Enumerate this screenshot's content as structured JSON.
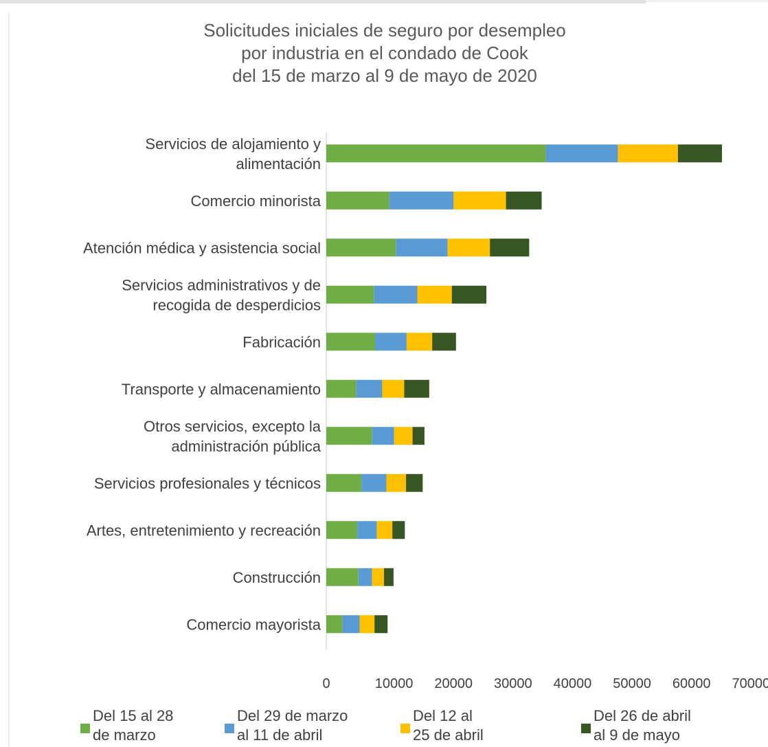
{
  "chart_data": {
    "type": "bar",
    "orientation": "horizontal",
    "stacked": true,
    "title_lines": [
      "Solicitudes iniciales de seguro por desempleo",
      "por industria en el condado de Cook",
      "del 15 de marzo al 9 de mayo de 2020"
    ],
    "categories": [
      [
        "Servicios de alojamiento y",
        "alimentación"
      ],
      [
        "Comercio minorista"
      ],
      [
        "Atención médica y asistencia social"
      ],
      [
        "Servicios administrativos y de",
        "recogida de desperdicios"
      ],
      [
        "Fabricación"
      ],
      [
        "Transporte y almacenamiento"
      ],
      [
        "Otros servicios, excepto la",
        "administración pública"
      ],
      [
        "Servicios profesionales y técnicos"
      ],
      [
        "Artes, entretenimiento y recreación"
      ],
      [
        "Construcción"
      ],
      [
        "Comercio mayorista"
      ]
    ],
    "series": [
      {
        "name": "Del 15 al 28\nde marzo",
        "color": "#70ad47",
        "values": [
          36900,
          10600,
          11700,
          8000,
          8200,
          5000,
          7700,
          5900,
          5200,
          5400,
          2700
        ]
      },
      {
        "name": "Del 29 de marzo\nal 11 de abril",
        "color": "#5b9bd5",
        "values": [
          12100,
          10800,
          8700,
          7300,
          5300,
          4400,
          3700,
          4200,
          3300,
          2300,
          2900
        ]
      },
      {
        "name": "Del 12 al\n25 de abril",
        "color": "#ffc000",
        "values": [
          10100,
          8800,
          7100,
          5800,
          4300,
          3700,
          3100,
          3300,
          2600,
          2000,
          2500
        ]
      },
      {
        "name": "Del 26 de abril\nal 9 de mayo",
        "color": "#375623",
        "values": [
          7400,
          6000,
          6600,
          5800,
          4000,
          4200,
          2000,
          2800,
          2100,
          1600,
          2200
        ]
      }
    ],
    "x_ticks": [
      "0",
      "10000",
      "20000",
      "30000",
      "40000",
      "50000",
      "60000",
      "70000"
    ],
    "xlim": [
      0,
      70000
    ],
    "grid": false,
    "legend_position": "bottom"
  }
}
